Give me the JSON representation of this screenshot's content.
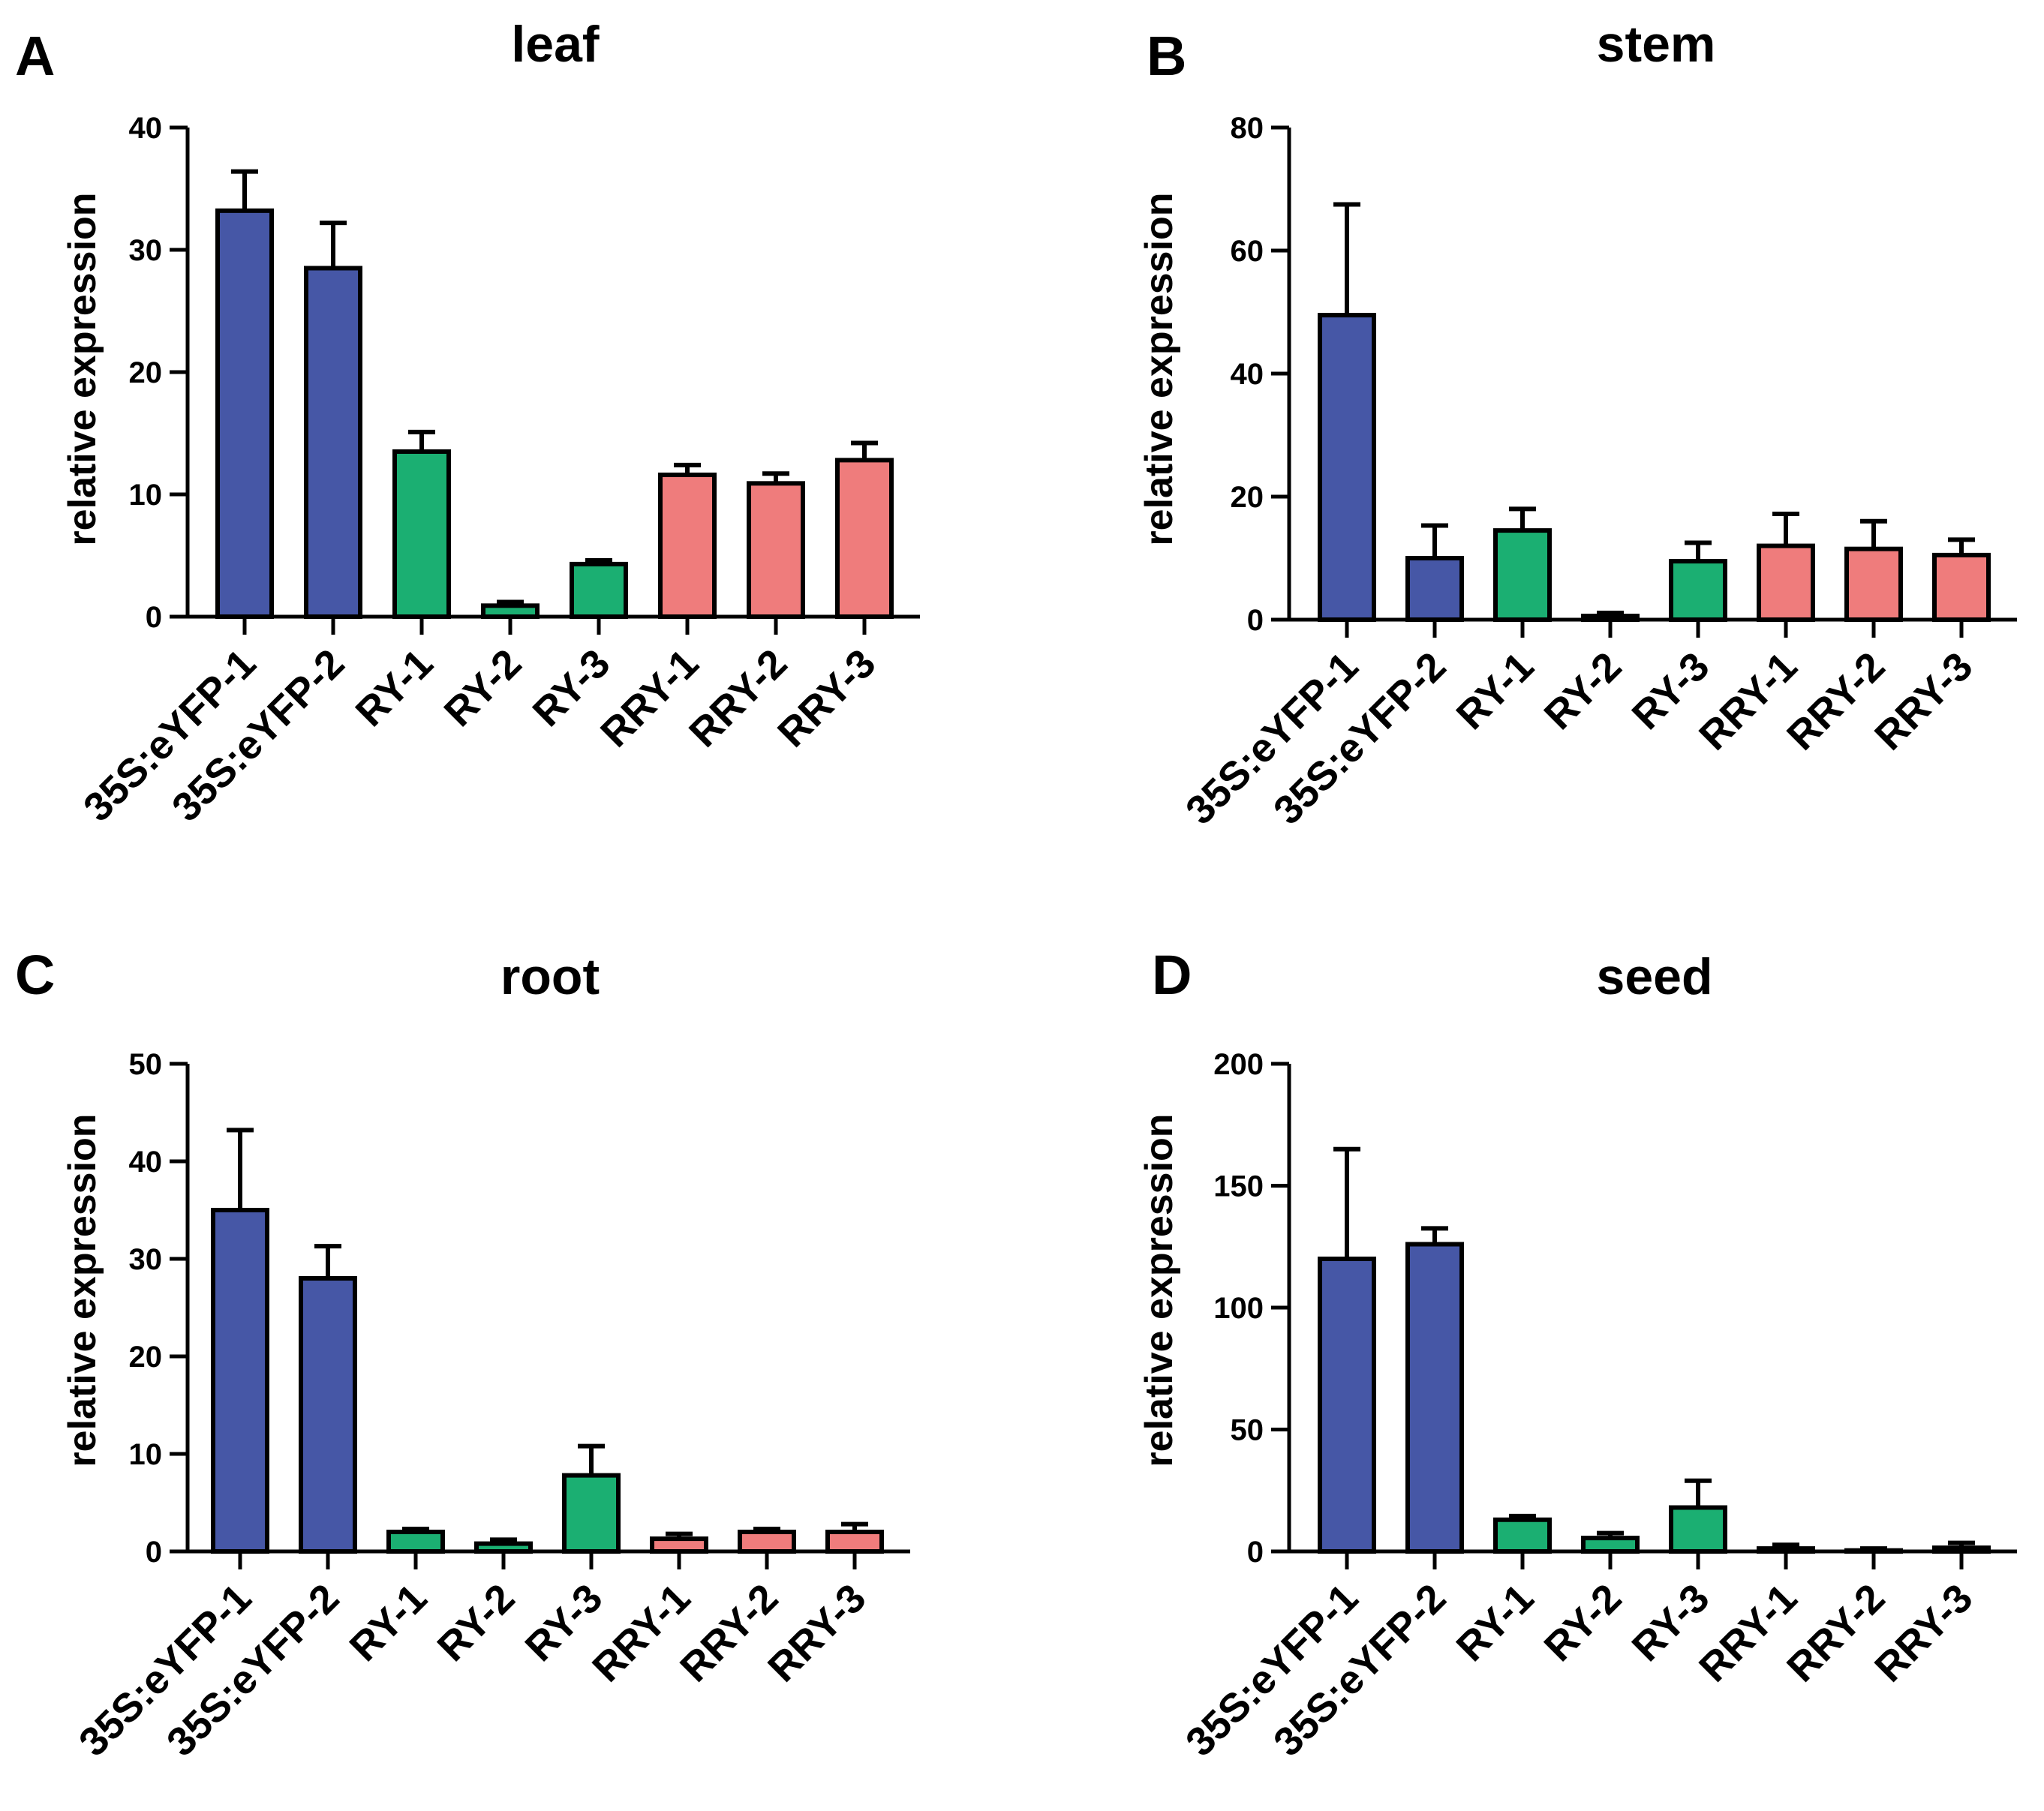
{
  "colors": {
    "eyfp": "#4657A6",
    "ry": "#1BAF72",
    "rry": "#EF7C7C",
    "axis": "#000000"
  },
  "chart_data": [
    {
      "panel": "A",
      "type": "bar",
      "title": "leaf",
      "xlabel": "",
      "ylabel": "relative expression",
      "ylim": [
        0,
        40
      ],
      "yticks": [
        0,
        10,
        20,
        30,
        40
      ],
      "categories": [
        "35S:eYFP-1",
        "35S:eYFP-2",
        "RY-1",
        "RY-2",
        "RY-3",
        "RRY-1",
        "RRY-2",
        "RRY-3"
      ],
      "values": [
        33.2,
        28.5,
        13.5,
        0.9,
        4.3,
        11.6,
        10.9,
        12.8
      ],
      "errors": [
        3.2,
        3.7,
        1.6,
        0.3,
        0.3,
        0.8,
        0.8,
        1.4
      ],
      "groups": [
        "eyfp",
        "eyfp",
        "ry",
        "ry",
        "ry",
        "rry",
        "rry",
        "rry"
      ],
      "grid": false,
      "legend": "none"
    },
    {
      "panel": "B",
      "type": "bar",
      "title": "stem",
      "xlabel": "",
      "ylabel": "relative expression",
      "ylim": [
        0,
        80
      ],
      "yticks": [
        0,
        20,
        40,
        60,
        80
      ],
      "categories": [
        "35S:eYFP-1",
        "35S:eYFP-2",
        "RY-1",
        "RY-2",
        "RY-3",
        "RRY-1",
        "RRY-2",
        "RRY-3"
      ],
      "values": [
        49.5,
        10.0,
        14.5,
        0.6,
        9.5,
        12.0,
        11.5,
        10.5
      ],
      "errors": [
        18.0,
        5.3,
        3.5,
        0.5,
        3.0,
        5.2,
        4.5,
        2.5
      ],
      "groups": [
        "eyfp",
        "eyfp",
        "ry",
        "ry",
        "ry",
        "rry",
        "rry",
        "rry"
      ],
      "grid": false,
      "legend": "none"
    },
    {
      "panel": "C",
      "type": "bar",
      "title": "root",
      "xlabel": "",
      "ylabel": "relative expression",
      "ylim": [
        0,
        50
      ],
      "yticks": [
        0,
        10,
        20,
        30,
        40,
        50
      ],
      "categories": [
        "35S:eYFP-1",
        "35S:eYFP-2",
        "RY-1",
        "RY-2",
        "RY-3",
        "RRY-1",
        "RRY-2",
        "RRY-3"
      ],
      "values": [
        35.0,
        28.0,
        2.0,
        0.8,
        7.8,
        1.3,
        2.0,
        2.0
      ],
      "errors": [
        8.2,
        3.3,
        0.3,
        0.4,
        3.0,
        0.5,
        0.3,
        0.8
      ],
      "groups": [
        "eyfp",
        "eyfp",
        "ry",
        "ry",
        "ry",
        "rry",
        "rry",
        "rry"
      ],
      "grid": false,
      "legend": "none"
    },
    {
      "panel": "D",
      "type": "bar",
      "title": "seed",
      "xlabel": "",
      "ylabel": "relative expression",
      "ylim": [
        0,
        200
      ],
      "yticks": [
        0,
        50,
        100,
        150,
        200
      ],
      "categories": [
        "35S:eYFP-1",
        "35S:eYFP-2",
        "RY-1",
        "RY-2",
        "RY-3",
        "RRY-1",
        "RRY-2",
        "RRY-3"
      ],
      "values": [
        120.0,
        126.0,
        13.0,
        5.5,
        18.0,
        1.2,
        0.4,
        1.5
      ],
      "errors": [
        45.0,
        6.5,
        1.5,
        2.0,
        11.0,
        1.5,
        0.8,
        2.0
      ],
      "groups": [
        "eyfp",
        "eyfp",
        "ry",
        "ry",
        "ry",
        "rry",
        "rry",
        "rry"
      ],
      "grid": false,
      "legend": "none"
    }
  ]
}
